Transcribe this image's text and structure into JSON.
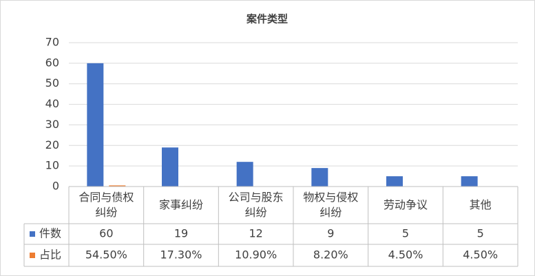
{
  "chart_data": {
    "type": "bar",
    "title": "案件类型",
    "categories": [
      "合同与债权纠纷",
      "家事纠纷",
      "公司与股东纠纷",
      "物权与侵权纠纷",
      "劳动争议",
      "其他"
    ],
    "series": [
      {
        "name": "件数",
        "color": "#4472c4",
        "values": [
          60,
          19,
          12,
          9,
          5,
          5
        ]
      },
      {
        "name": "占比",
        "color": "#ed7d31",
        "values": [
          0.545,
          0.173,
          0.109,
          0.082,
          0.045,
          0.045
        ],
        "value_labels": [
          "54.50%",
          "17.30%",
          "10.90%",
          "8.20%",
          "4.50%",
          "4.50%"
        ]
      }
    ],
    "ylim": [
      0,
      70
    ],
    "yticks": [
      0,
      10,
      20,
      30,
      40,
      50,
      60,
      70
    ],
    "grid": true,
    "data_table": true
  }
}
